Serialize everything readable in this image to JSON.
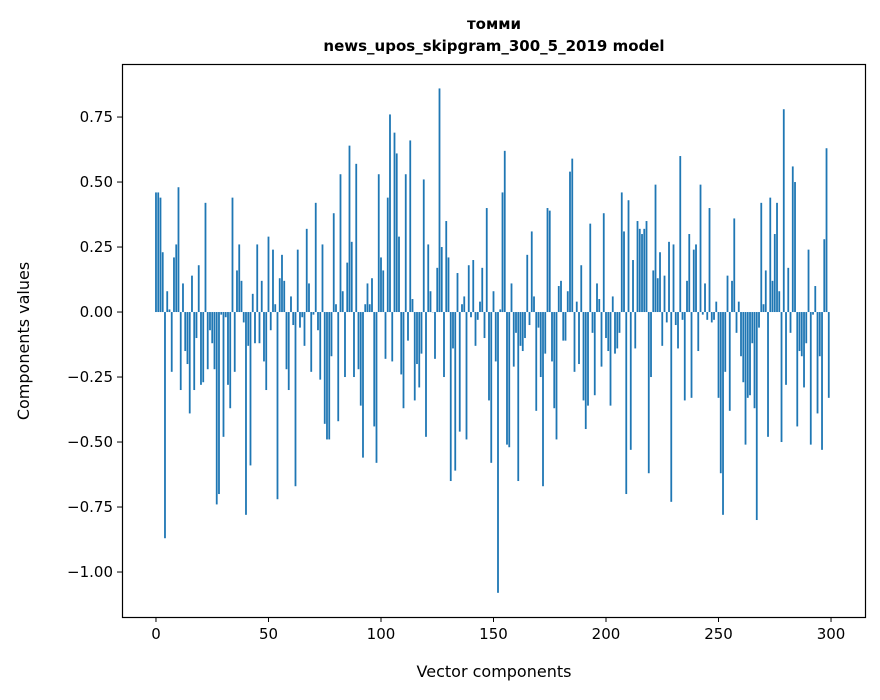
{
  "chart_data": {
    "type": "bar",
    "title": "томми",
    "subtitle": "news_upos_skipgram_300_5_2019 model",
    "xlabel": "Vector components",
    "ylabel": "Components values",
    "xlim": [
      -15.1,
      315.1
    ],
    "ylim": [
      -1.173,
      0.954
    ],
    "xticks": [
      0,
      50,
      100,
      150,
      200,
      250,
      300
    ],
    "xtick_labels": [
      "0",
      "50",
      "100",
      "150",
      "200",
      "250",
      "300"
    ],
    "yticks": [
      -1.0,
      -0.75,
      -0.5,
      -0.25,
      0.0,
      0.25,
      0.5,
      0.75
    ],
    "ytick_labels": [
      "−1.00",
      "−0.75",
      "−0.50",
      "−0.25",
      "0.00",
      "0.25",
      "0.50",
      "0.75"
    ],
    "grid": false,
    "color": "#1f77b4",
    "values": [
      0.46,
      0.46,
      0.44,
      0.23,
      -0.87,
      0.08,
      0.01,
      -0.23,
      0.21,
      0.26,
      0.48,
      -0.3,
      0.11,
      -0.15,
      -0.2,
      -0.39,
      0.14,
      -0.3,
      -0.1,
      0.18,
      -0.28,
      -0.27,
      0.42,
      -0.22,
      -0.07,
      -0.12,
      -0.22,
      -0.74,
      -0.7,
      -0.01,
      -0.48,
      -0.02,
      -0.28,
      -0.37,
      0.44,
      -0.23,
      0.16,
      0.26,
      0.12,
      -0.04,
      -0.78,
      -0.13,
      -0.59,
      0.07,
      -0.12,
      0.26,
      -0.12,
      0.12,
      -0.19,
      -0.3,
      0.29,
      -0.07,
      0.24,
      0.03,
      -0.72,
      0.13,
      0.22,
      0.12,
      -0.22,
      -0.3,
      0.06,
      -0.05,
      -0.67,
      0.24,
      -0.06,
      -0.02,
      -0.13,
      0.32,
      0.11,
      -0.23,
      -0.01,
      0.42,
      -0.07,
      -0.26,
      0.26,
      -0.43,
      -0.49,
      -0.49,
      -0.17,
      0.38,
      0.03,
      -0.42,
      0.53,
      0.08,
      -0.25,
      0.19,
      0.64,
      0.27,
      -0.25,
      0.57,
      -0.22,
      -0.36,
      -0.56,
      0.03,
      0.11,
      0.03,
      0.13,
      -0.44,
      -0.58,
      0.53,
      0.21,
      0.16,
      -0.18,
      0.44,
      0.76,
      -0.19,
      0.69,
      0.61,
      0.29,
      -0.24,
      -0.37,
      0.53,
      -0.11,
      0.66,
      0.05,
      -0.34,
      -0.2,
      -0.29,
      -0.16,
      0.51,
      -0.48,
      0.26,
      0.08,
      0.0,
      -0.18,
      0.17,
      0.86,
      0.25,
      -0.25,
      0.35,
      0.21,
      -0.65,
      -0.14,
      -0.61,
      0.15,
      -0.46,
      0.03,
      0.06,
      -0.49,
      0.18,
      -0.02,
      0.2,
      -0.13,
      -0.03,
      0.04,
      0.17,
      -0.1,
      0.4,
      -0.34,
      -0.58,
      0.08,
      -0.19,
      -1.08,
      0.01,
      0.46,
      0.62,
      -0.51,
      -0.52,
      0.11,
      -0.21,
      -0.08,
      -0.65,
      -0.13,
      -0.15,
      -0.1,
      0.22,
      -0.05,
      0.31,
      0.06,
      -0.38,
      -0.06,
      -0.25,
      -0.67,
      -0.16,
      0.4,
      0.39,
      -0.19,
      -0.37,
      -0.49,
      0.1,
      0.12,
      -0.11,
      -0.11,
      0.08,
      0.54,
      0.59,
      -0.23,
      0.04,
      -0.2,
      0.18,
      -0.34,
      -0.45,
      -0.36,
      0.34,
      -0.08,
      -0.32,
      0.11,
      0.05,
      -0.21,
      0.38,
      -0.1,
      -0.15,
      -0.36,
      0.06,
      -0.16,
      -0.14,
      -0.08,
      0.46,
      0.31,
      -0.7,
      0.43,
      -0.53,
      0.2,
      -0.14,
      0.35,
      0.32,
      0.3,
      0.32,
      0.35,
      -0.62,
      -0.25,
      0.16,
      0.49,
      0.13,
      0.23,
      -0.13,
      0.14,
      -0.04,
      0.27,
      -0.73,
      0.26,
      -0.05,
      -0.14,
      0.6,
      -0.03,
      -0.34,
      0.12,
      0.3,
      -0.33,
      0.24,
      0.26,
      -0.15,
      0.49,
      -0.01,
      0.11,
      -0.03,
      0.4,
      -0.04,
      -0.03,
      0.04,
      -0.33,
      -0.62,
      -0.78,
      -0.23,
      0.14,
      -0.38,
      0.12,
      0.36,
      -0.08,
      0.04,
      -0.17,
      -0.27,
      -0.51,
      -0.33,
      -0.32,
      -0.12,
      -0.37,
      -0.8,
      -0.06,
      0.42,
      0.03,
      0.16,
      -0.48,
      0.44,
      0.12,
      0.3,
      0.42,
      0.08,
      -0.5,
      0.78,
      -0.28,
      0.17,
      -0.08,
      0.56,
      0.5,
      -0.44,
      -0.15,
      -0.17,
      -0.29,
      -0.12,
      0.24,
      -0.51,
      -0.01,
      0.1,
      -0.39,
      -0.17,
      -0.53,
      0.28,
      0.63,
      -0.33
    ]
  }
}
